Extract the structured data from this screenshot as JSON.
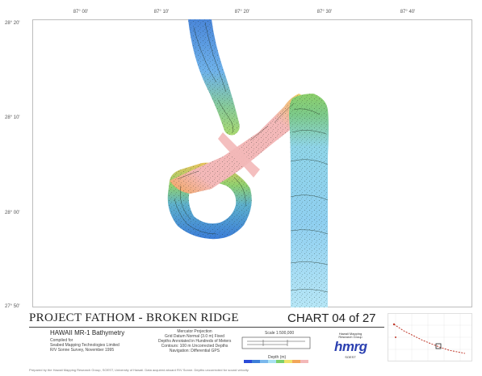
{
  "map": {
    "lon_labels": [
      "87° 00'",
      "87° 10'",
      "87° 20'",
      "87° 30'",
      "87° 40'"
    ],
    "lat_labels": [
      "28° 20'",
      "28° 10'",
      "28° 00'",
      "27° 50'"
    ],
    "colors": {
      "deep_blue": "#3d7fd8",
      "mid_blue": "#7ab8ec",
      "light_cyan": "#a9e1f2",
      "green": "#7ccf6b",
      "yellow": "#f0e26a",
      "orange": "#f2a65a",
      "pink": "#f3b8b8",
      "contour": "#1c2a1c"
    }
  },
  "footer": {
    "title": "PROJECT FATHOM - BROKEN RIDGE",
    "chart_number": "CHART 04 of 27",
    "survey": "HAWAII MR-1 Bathymetry",
    "sub": [
      "Compiled for",
      "Seabed Mapping Technologies Limited",
      "R/V Sonne Survey, November 1995"
    ],
    "projection": [
      "Mercator Projection",
      "Grid Datum Normal (3.0 m) Fixed",
      "Depths Annotated in Hundreds of Meters",
      "Contours: 100 m   Uncorrected Depths",
      "Navigation: Differential GPS"
    ],
    "scale_title": "Scale 1:500,000",
    "depth_title": "Depth (m)",
    "logo": {
      "top": "Hawaii Mapping Research Group",
      "word": "hmrg",
      "bottom": "SOEST"
    },
    "note": "Prepared by the Hawaii Mapping Research Group, SOEST, University of Hawaii. Data acquired aboard R/V Sonne. Depths uncorrected for sound velocity."
  }
}
